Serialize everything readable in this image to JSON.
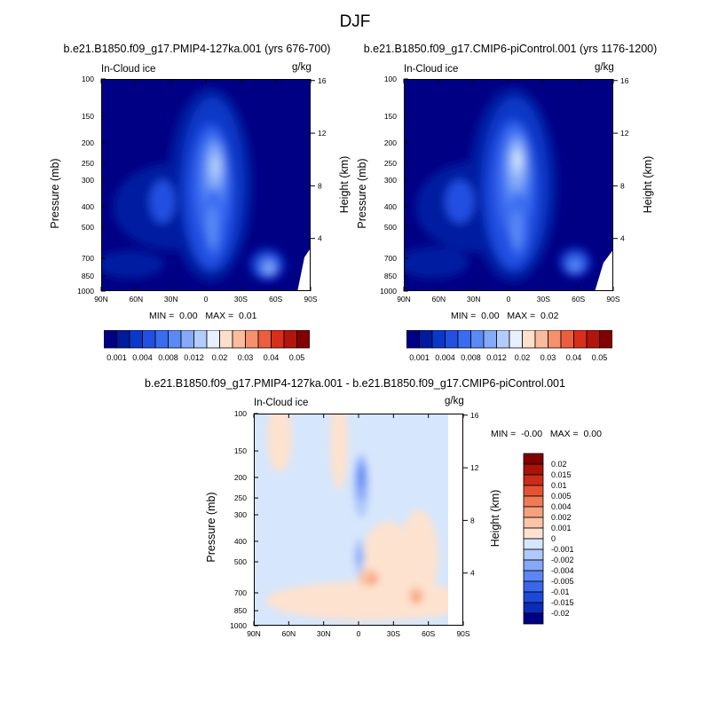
{
  "page_title": "DJF",
  "chart_data": [
    {
      "type": "heatmap",
      "title": "b.e21.B1850.f09_g17.PMIP4-127ka.001 (yrs 676-700)",
      "left_label": "In-Cloud ice",
      "right_label": "g/kg",
      "xlabel": "",
      "ylabel": "Pressure (mb)",
      "y2label": "Height (km)",
      "x_ticks": [
        "90N",
        "60N",
        "30N",
        "0",
        "30S",
        "60S",
        "90S"
      ],
      "y_ticks": [
        100,
        150,
        200,
        250,
        300,
        400,
        500,
        700,
        850,
        1000
      ],
      "y_log_scale": true,
      "y2_ticks": [
        16,
        12,
        8,
        4
      ],
      "min_label": "MIN =",
      "min_value": "0.00",
      "max_label": "MAX =",
      "max_value": "0.01",
      "levels": [
        "0.001",
        "0.004",
        "0.008",
        "0.012",
        "0.02",
        "0.03",
        "0.04",
        "0.05"
      ],
      "features": [
        {
          "lat": 0,
          "p": 250,
          "value": 0.012
        },
        {
          "lat": 5,
          "p": 600,
          "value": 0.008
        },
        {
          "lat": 60,
          "p": 800,
          "value": 0.008
        },
        {
          "lat": -75,
          "p": 350,
          "value": 0.004
        }
      ]
    },
    {
      "type": "heatmap",
      "title": "b.e21.B1850.f09_g17.CMIP6-piControl.001 (yrs 1176-1200)",
      "left_label": "In-Cloud ice",
      "right_label": "g/kg",
      "xlabel": "",
      "ylabel": "Pressure (mb)",
      "y2label": "Height (km)",
      "x_ticks": [
        "90N",
        "60N",
        "30N",
        "0",
        "30S",
        "60S",
        "90S"
      ],
      "y_ticks": [
        100,
        150,
        200,
        250,
        300,
        400,
        500,
        700,
        850,
        1000
      ],
      "y_log_scale": true,
      "y2_ticks": [
        16,
        12,
        8,
        4
      ],
      "min_label": "MIN =",
      "min_value": "0.00",
      "max_label": "MAX =",
      "max_value": "0.02",
      "levels": [
        "0.001",
        "0.004",
        "0.008",
        "0.012",
        "0.02",
        "0.03",
        "0.04",
        "0.05"
      ],
      "features": [
        {
          "lat": -5,
          "p": 250,
          "value": 0.012
        },
        {
          "lat": 5,
          "p": 600,
          "value": 0.008
        },
        {
          "lat": 50,
          "p": 750,
          "value": 0.008
        },
        {
          "lat": -75,
          "p": 350,
          "value": 0.004
        }
      ]
    },
    {
      "type": "heatmap",
      "title": "b.e21.B1850.f09_g17.PMIP4-127ka.001 - b.e21.B1850.f09_g17.CMIP6-piControl.001",
      "left_label": "In-Cloud ice",
      "right_label": "g/kg",
      "xlabel": "",
      "ylabel": "Pressure (mb)",
      "y2label": "Height (km)",
      "x_ticks": [
        "90N",
        "60N",
        "30N",
        "0",
        "30S",
        "60S",
        "90S"
      ],
      "y_ticks": [
        100,
        150,
        200,
        250,
        300,
        400,
        500,
        700,
        850,
        1000
      ],
      "y_log_scale": true,
      "y2_ticks": [
        16,
        12,
        8,
        4
      ],
      "min_label": "MIN =",
      "min_value": "-0.00",
      "max_label": "MAX =",
      "max_value": "0.00",
      "levels": [
        "0.02",
        "0.015",
        "0.01",
        "0.005",
        "0.004",
        "0.002",
        "0.001",
        "0",
        "-0.001",
        "-0.002",
        "-0.004",
        "-0.005",
        "-0.01",
        "-0.015",
        "-0.02"
      ],
      "features": [
        {
          "lat": 0,
          "p": 200,
          "value": -0.002
        },
        {
          "lat": 0,
          "p": 450,
          "value": -0.001
        },
        {
          "lat": -10,
          "p": 650,
          "value": 0.002
        },
        {
          "lat": -48,
          "p": 750,
          "value": 0.002
        }
      ]
    }
  ],
  "colors": {
    "abs_levels": [
      "#000085",
      "#001aa0",
      "#0a38c8",
      "#2250e2",
      "#3a6cf0",
      "#5a8af5",
      "#84aaf8",
      "#b2cdfb",
      "#e8f0fd",
      "#fde0cc",
      "#fbbc9e",
      "#f7906c",
      "#ec5e3e",
      "#d82e1a",
      "#b3140c",
      "#820000"
    ],
    "diff_levels": [
      "#000085",
      "#0a2cb8",
      "#1d48da",
      "#3a66ec",
      "#5c86f3",
      "#85a8f7",
      "#b0c8fa",
      "#d6e6fc",
      "#fde2cf",
      "#fbc4a6",
      "#f7a07e",
      "#ef7a56",
      "#e55233",
      "#cc2c17",
      "#a8140a",
      "#820000"
    ]
  }
}
